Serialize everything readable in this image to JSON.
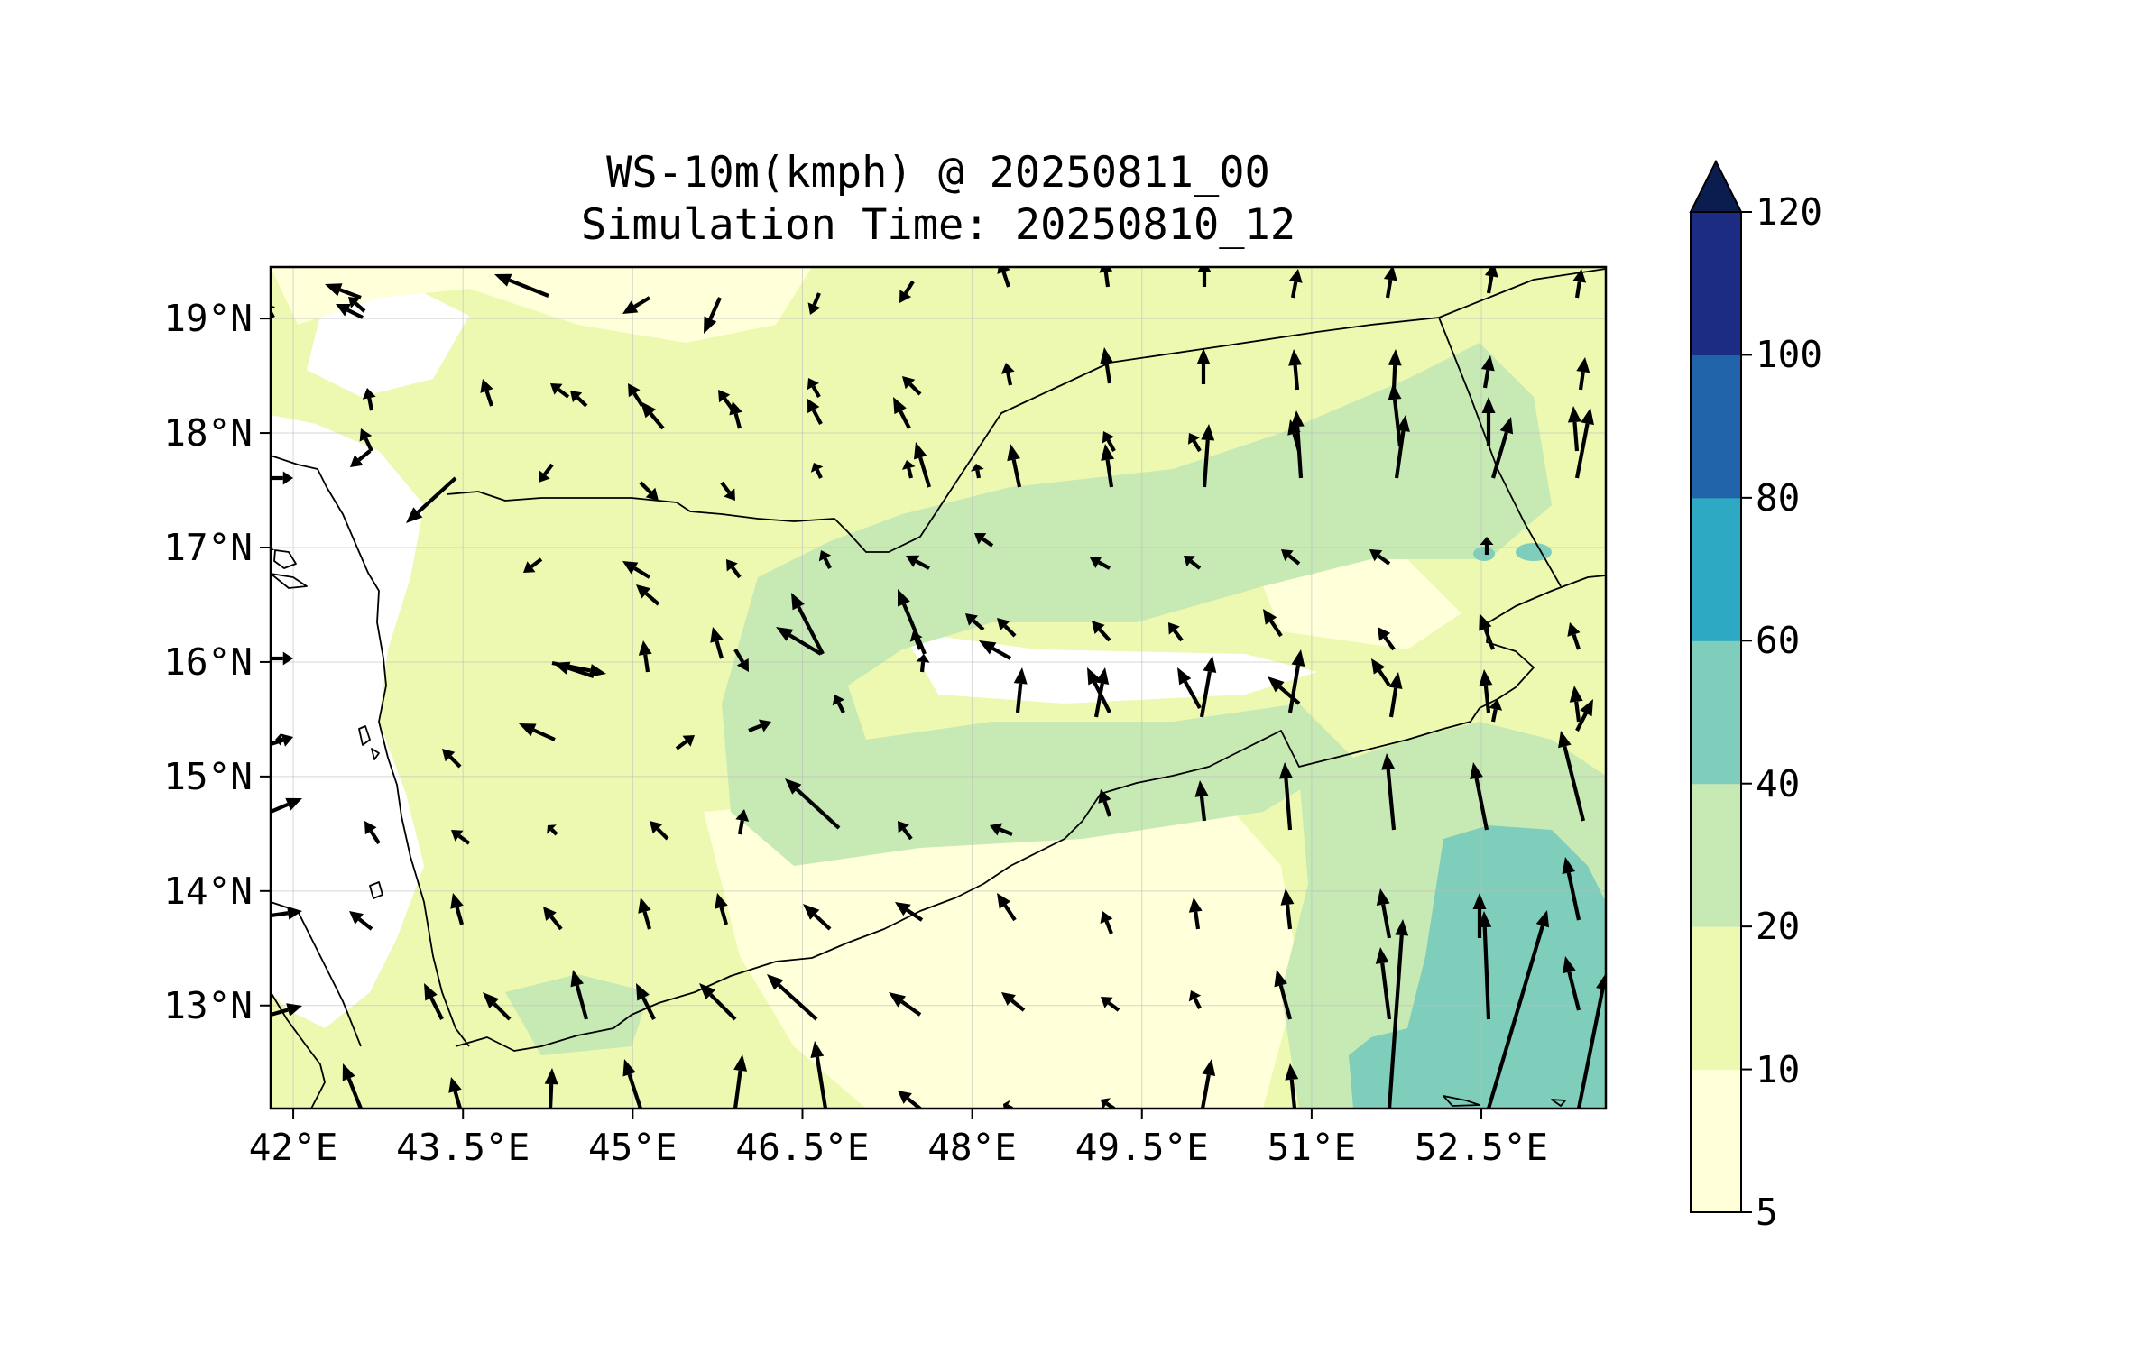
{
  "title": {
    "line1": "WS-10m(kmph) @ 20250811_00",
    "line2": "Simulation Time: 20250810_12"
  },
  "map": {
    "lon_range": [
      41.8,
      53.6
    ],
    "lat_range": [
      12.1,
      19.45
    ],
    "lon_ticks": [
      {
        "value": 42.0,
        "label": "42°E"
      },
      {
        "value": 43.5,
        "label": "43.5°E"
      },
      {
        "value": 45.0,
        "label": "45°E"
      },
      {
        "value": 46.5,
        "label": "46.5°E"
      },
      {
        "value": 48.0,
        "label": "48°E"
      },
      {
        "value": 49.5,
        "label": "49.5°E"
      },
      {
        "value": 51.0,
        "label": "51°E"
      },
      {
        "value": 52.5,
        "label": "52.5°E"
      }
    ],
    "lat_ticks": [
      {
        "value": 19,
        "label": "19°N"
      },
      {
        "value": 18,
        "label": "18°N"
      },
      {
        "value": 17,
        "label": "17°N"
      },
      {
        "value": 16,
        "label": "16°N"
      },
      {
        "value": 15,
        "label": "15°N"
      },
      {
        "value": 14,
        "label": "14°N"
      },
      {
        "value": 13,
        "label": "13°N"
      }
    ],
    "gridlines": true
  },
  "colorbar": {
    "levels": [
      {
        "value": 5,
        "label": "5"
      },
      {
        "value": 10,
        "label": "10"
      },
      {
        "value": 20,
        "label": "20"
      },
      {
        "value": 40,
        "label": "40"
      },
      {
        "value": 60,
        "label": "60"
      },
      {
        "value": 80,
        "label": "80"
      },
      {
        "value": 100,
        "label": "100"
      },
      {
        "value": 120,
        "label": "120"
      }
    ],
    "colors": [
      "#ffffd9",
      "#edf8b1",
      "#c7e9b4",
      "#7fcdbb",
      "#2ea9c3",
      "#2163a9",
      "#1d2c83"
    ],
    "extend_color": "#0b1d4f",
    "extend": "max"
  }
}
